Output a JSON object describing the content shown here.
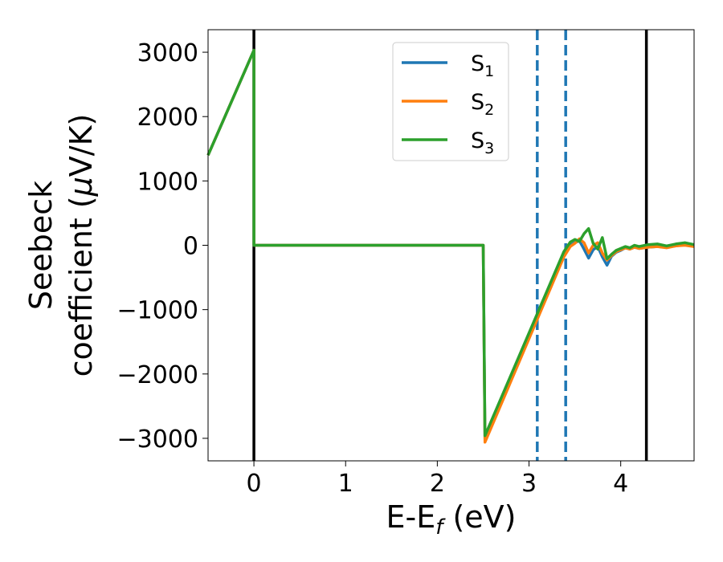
{
  "chart_data": {
    "type": "line",
    "xlabel_main": "E-E",
    "xlabel_sub": "f",
    "xlabel_unit": " (eV)",
    "ylabel_line1": "Seebeck",
    "ylabel_line2_pre": "coefficient  (",
    "ylabel_line2_mu": "μ",
    "ylabel_line2_post": "V/K)",
    "xlim": [
      -0.5,
      4.8
    ],
    "ylim": [
      -3350,
      3350
    ],
    "xticks": [
      0,
      1,
      2,
      3,
      4
    ],
    "xtick_labels": [
      "0",
      "1",
      "2",
      "3",
      "4"
    ],
    "yticks": [
      3000,
      2000,
      1000,
      0,
      -1000,
      -2000,
      -3000
    ],
    "ytick_labels": [
      "3000",
      "2000",
      "1000",
      "0",
      "−1000",
      "−2000",
      "−3000"
    ],
    "legend_position": "upper-center",
    "grid": false,
    "vlines": [
      {
        "x": 0.0,
        "style": "solid",
        "color": "#000000"
      },
      {
        "x": 4.28,
        "style": "solid",
        "color": "#000000"
      },
      {
        "x": 3.09,
        "style": "dashed",
        "color": "#1f77b4"
      },
      {
        "x": 3.4,
        "style": "dashed",
        "color": "#1f77b4"
      }
    ],
    "series": [
      {
        "name": "S",
        "sub": "1",
        "color": "#1f77b4",
        "x": [
          -0.5,
          0.0,
          0.0,
          2.5,
          2.5,
          2.52,
          3.38,
          3.45,
          3.5,
          3.55,
          3.6,
          3.65,
          3.7,
          3.75,
          3.8,
          3.85,
          3.9,
          3.95,
          4.0,
          4.05,
          4.1,
          4.15,
          4.2,
          4.3,
          4.4,
          4.5,
          4.6,
          4.7,
          4.8
        ],
        "y": [
          1400,
          3030,
          0,
          0,
          0,
          -3010,
          -150,
          0,
          40,
          70,
          -60,
          -200,
          -70,
          -20,
          -180,
          -310,
          -170,
          -110,
          -80,
          -40,
          -60,
          -30,
          -50,
          -30,
          -20,
          -30,
          -10,
          10,
          -10
        ]
      },
      {
        "name": "S",
        "sub": "2",
        "color": "#ff7f0e",
        "x": [
          -0.5,
          0.0,
          0.0,
          2.5,
          2.5,
          2.52,
          3.38,
          3.45,
          3.5,
          3.55,
          3.6,
          3.65,
          3.7,
          3.75,
          3.8,
          3.85,
          3.9,
          3.95,
          4.0,
          4.05,
          4.1,
          4.15,
          4.2,
          4.3,
          4.4,
          4.5,
          4.6,
          4.7,
          4.8
        ],
        "y": [
          1400,
          3030,
          0,
          0,
          0,
          -3060,
          -180,
          -20,
          30,
          100,
          40,
          -120,
          0,
          40,
          -120,
          -230,
          -160,
          -100,
          -70,
          -40,
          -60,
          -30,
          -50,
          -30,
          -20,
          -40,
          -10,
          0,
          -20
        ]
      },
      {
        "name": "S",
        "sub": "3",
        "color": "#2ca02c",
        "x": [
          -0.5,
          0.0,
          0.0,
          2.5,
          2.5,
          2.52,
          3.38,
          3.45,
          3.5,
          3.55,
          3.6,
          3.65,
          3.7,
          3.75,
          3.8,
          3.85,
          3.9,
          3.95,
          4.0,
          4.05,
          4.1,
          4.15,
          4.2,
          4.3,
          4.4,
          4.5,
          4.6,
          4.7,
          4.8
        ],
        "y": [
          1400,
          3030,
          0,
          0,
          0,
          -2960,
          -100,
          50,
          90,
          60,
          180,
          260,
          30,
          -60,
          120,
          -210,
          -140,
          -80,
          -50,
          -20,
          -40,
          0,
          -20,
          10,
          20,
          -10,
          20,
          40,
          10
        ]
      }
    ]
  }
}
